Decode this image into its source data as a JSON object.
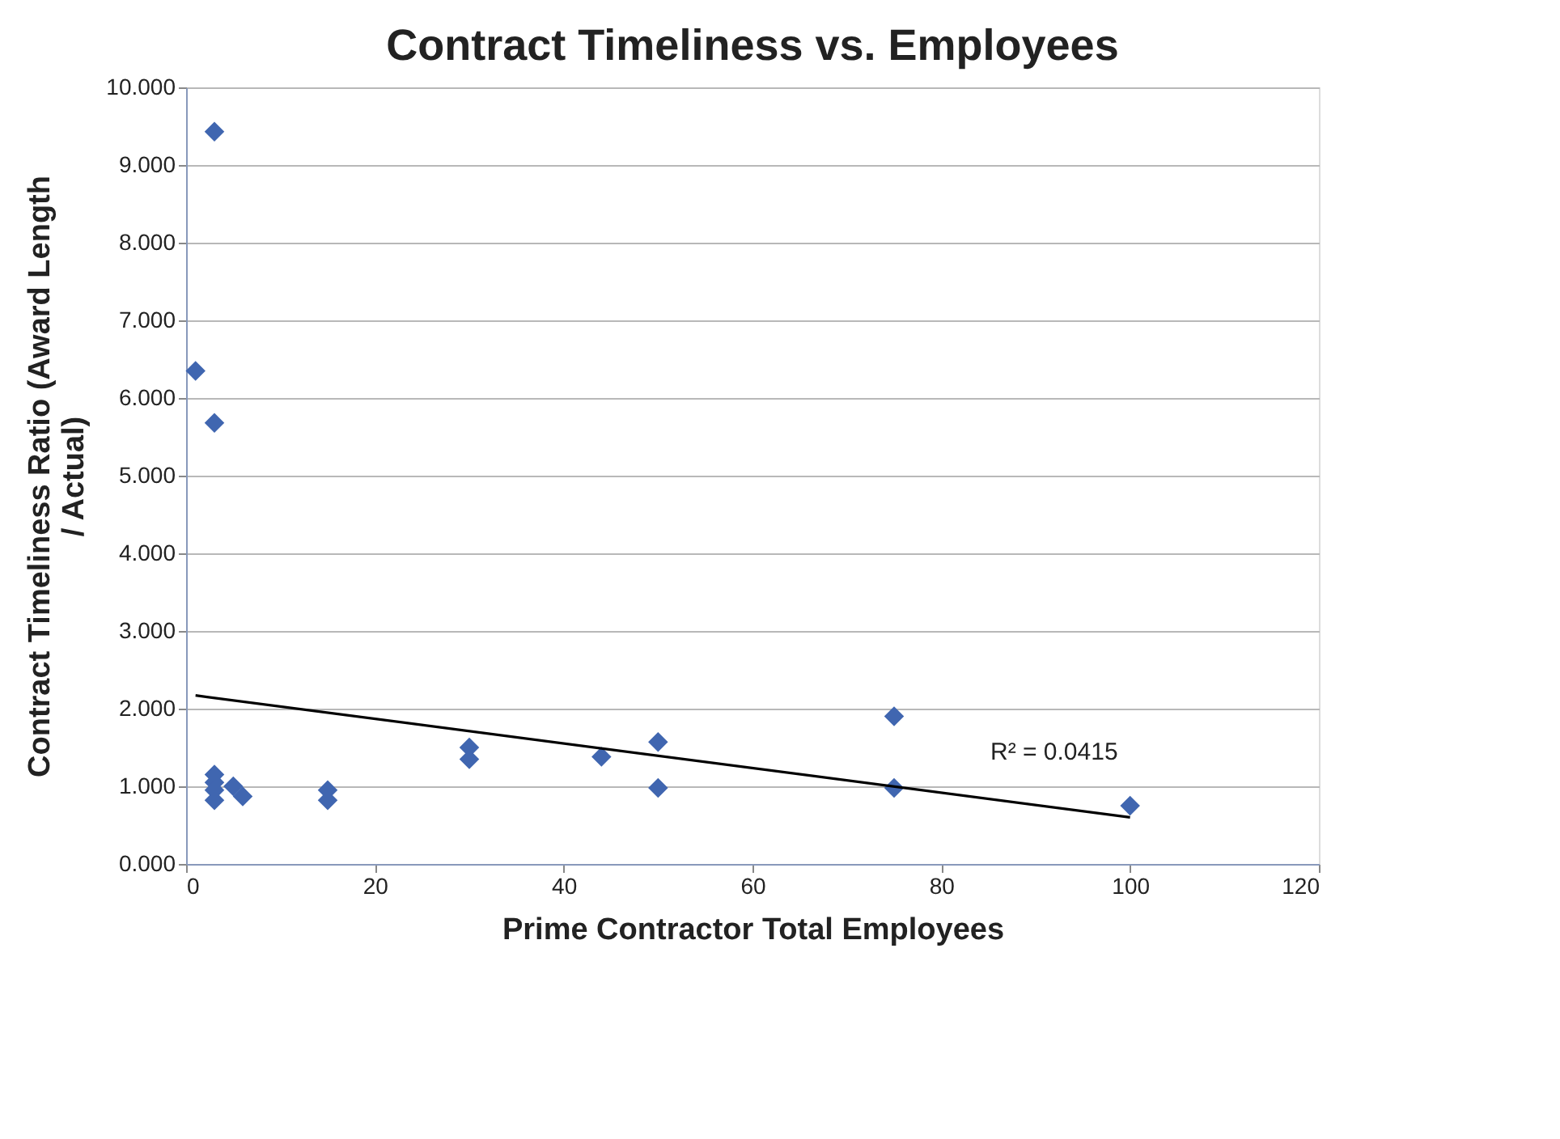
{
  "chart_data": {
    "type": "scatter",
    "title": "Contract Timeliness vs. Employees",
    "xlabel": "Prime Contractor Total Employees",
    "ylabel": "Contract Timeliness Ratio (Award Length / Actual)",
    "series": [
      {
        "color": "#4066b0",
        "marker": "diamond",
        "x": [
          3,
          1,
          3,
          3,
          3,
          3,
          3,
          5,
          6,
          15,
          15,
          30,
          30,
          44,
          50,
          50,
          75,
          75,
          100
        ],
        "values": [
          9.43,
          6.35,
          5.68,
          1.15,
          1.05,
          0.95,
          0.82,
          1.0,
          0.87,
          0.95,
          0.82,
          1.5,
          1.35,
          1.38,
          1.57,
          0.98,
          1.9,
          0.98,
          0.75
        ]
      },
      {
        "type": "line",
        "color": "#000000",
        "x": [
          1,
          100
        ],
        "values": [
          2.17,
          0.6
        ]
      }
    ],
    "annotations": [
      "R² = 0.0415"
    ],
    "grid": "y",
    "xlim": [
      0,
      120
    ],
    "xticks": [
      0,
      20,
      40,
      60,
      80,
      100,
      120
    ],
    "ylim": [
      0,
      10
    ],
    "yticks": [
      {
        "value": 0,
        "label": "0.000"
      },
      {
        "value": 1,
        "label": "1.000"
      },
      {
        "value": 2,
        "label": "2.000"
      },
      {
        "value": 3,
        "label": "3.000"
      },
      {
        "value": 4,
        "label": "4.000"
      },
      {
        "value": 5,
        "label": "5.000"
      },
      {
        "value": 6,
        "label": "6.000"
      },
      {
        "value": 7,
        "label": "7.000"
      },
      {
        "value": 8,
        "label": "8.000"
      },
      {
        "value": 9,
        "label": "9.000"
      },
      {
        "value": 10,
        "label": "10.000"
      }
    ]
  }
}
